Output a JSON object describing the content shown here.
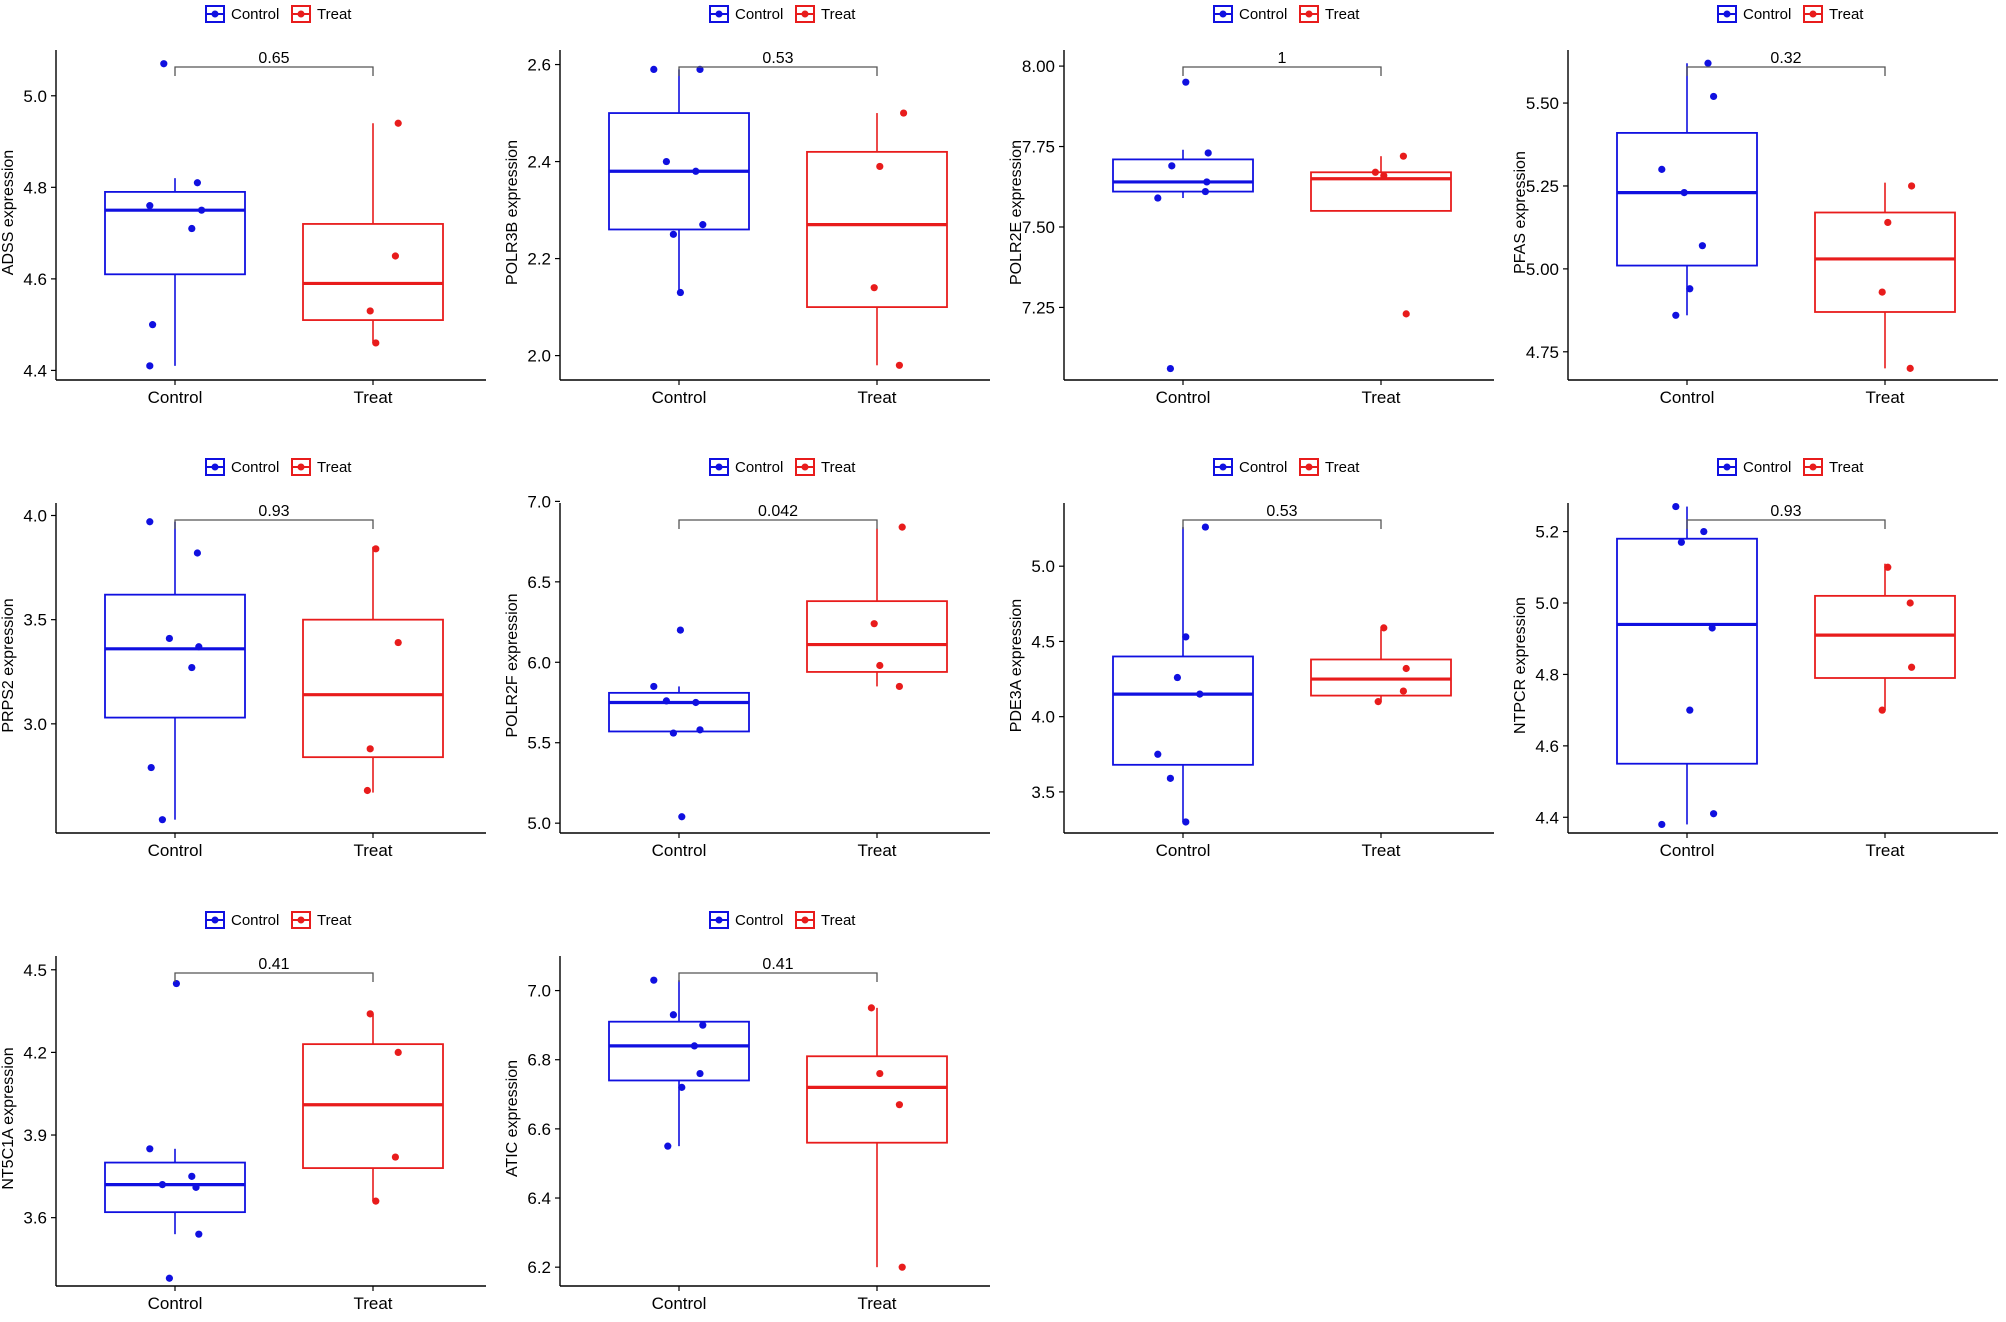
{
  "legend": {
    "control_label": "Control",
    "treat_label": "Treat"
  },
  "colors": {
    "control": "#1010E0",
    "treat": "#E81C1C",
    "axis": "#000000",
    "bracket": "#555555"
  },
  "chart_data": [
    {
      "type": "boxplot",
      "gene": "ADSS",
      "ylabel": "ADSS expression",
      "pvalue": "0.65",
      "categories": [
        "Control",
        "Treat"
      ],
      "ylim": [
        4.39,
        5.1
      ],
      "yticks": [
        4.4,
        4.6,
        4.8,
        5.0
      ],
      "series": [
        {
          "name": "Control",
          "box": {
            "min": 4.41,
            "q1": 4.61,
            "median": 4.75,
            "q3": 4.79,
            "max": 4.82
          },
          "points": [
            [
              -0.18,
              4.76
            ],
            [
              0.16,
              4.81
            ],
            [
              -0.18,
              4.41
            ],
            [
              0.12,
              4.71
            ],
            [
              0.19,
              4.75
            ],
            [
              -0.16,
              4.5
            ],
            [
              -0.08,
              5.07
            ]
          ]
        },
        {
          "name": "Treat",
          "box": {
            "min": 4.46,
            "q1": 4.51,
            "median": 4.59,
            "q3": 4.72,
            "max": 4.94
          },
          "points": [
            [
              0.18,
              4.94
            ],
            [
              0.16,
              4.65
            ],
            [
              -0.02,
              4.53
            ],
            [
              0.02,
              4.46
            ]
          ]
        }
      ]
    },
    {
      "type": "boxplot",
      "gene": "POLR3B",
      "ylabel": "POLR3B expression",
      "pvalue": "0.53",
      "categories": [
        "Control",
        "Treat"
      ],
      "ylim": [
        1.96,
        2.63
      ],
      "yticks": [
        2.0,
        2.2,
        2.4,
        2.6
      ],
      "series": [
        {
          "name": "Control",
          "box": {
            "min": 2.13,
            "q1": 2.26,
            "median": 2.38,
            "q3": 2.5,
            "max": 2.59
          },
          "points": [
            [
              -0.18,
              2.59
            ],
            [
              0.15,
              2.59
            ],
            [
              -0.09,
              2.4
            ],
            [
              0.12,
              2.38
            ],
            [
              -0.04,
              2.25
            ],
            [
              0.17,
              2.27
            ],
            [
              0.01,
              2.13
            ]
          ]
        },
        {
          "name": "Treat",
          "box": {
            "min": 1.98,
            "q1": 2.1,
            "median": 2.27,
            "q3": 2.42,
            "max": 2.5
          },
          "points": [
            [
              0.19,
              2.5
            ],
            [
              0.02,
              2.39
            ],
            [
              -0.02,
              2.14
            ],
            [
              0.16,
              1.98
            ]
          ]
        }
      ]
    },
    {
      "type": "boxplot",
      "gene": "POLR2E",
      "ylabel": "POLR2E expression",
      "pvalue": "1",
      "categories": [
        "Control",
        "Treat"
      ],
      "ylim": [
        7.04,
        8.05
      ],
      "yticks": [
        7.25,
        7.5,
        7.75,
        8.0
      ],
      "series": [
        {
          "name": "Control",
          "box": {
            "min": 7.59,
            "q1": 7.61,
            "median": 7.64,
            "q3": 7.71,
            "max": 7.74
          },
          "points": [
            [
              0.02,
              7.95
            ],
            [
              0.18,
              7.73
            ],
            [
              -0.08,
              7.69
            ],
            [
              0.17,
              7.64
            ],
            [
              0.16,
              7.61
            ],
            [
              -0.18,
              7.59
            ],
            [
              -0.09,
              7.06
            ]
          ]
        },
        {
          "name": "Treat",
          "box": {
            "min": 7.55,
            "q1": 7.55,
            "median": 7.65,
            "q3": 7.67,
            "max": 7.72
          },
          "points": [
            [
              0.16,
              7.72
            ],
            [
              0.02,
              7.66
            ],
            [
              -0.04,
              7.67
            ],
            [
              0.18,
              7.23
            ]
          ]
        }
      ]
    },
    {
      "type": "boxplot",
      "gene": "PFAS",
      "ylabel": "PFAS expression",
      "pvalue": "0.32",
      "categories": [
        "Control",
        "Treat"
      ],
      "ylim": [
        4.68,
        5.66
      ],
      "yticks": [
        4.75,
        5.0,
        5.25,
        5.5
      ],
      "series": [
        {
          "name": "Control",
          "box": {
            "min": 4.86,
            "q1": 5.01,
            "median": 5.23,
            "q3": 5.41,
            "max": 5.62
          },
          "points": [
            [
              0.15,
              5.62
            ],
            [
              0.19,
              5.52
            ],
            [
              -0.18,
              5.3
            ],
            [
              -0.02,
              5.23
            ],
            [
              0.11,
              5.07
            ],
            [
              0.02,
              4.94
            ],
            [
              -0.08,
              4.86
            ]
          ]
        },
        {
          "name": "Treat",
          "box": {
            "min": 4.7,
            "q1": 4.87,
            "median": 5.03,
            "q3": 5.17,
            "max": 5.26
          },
          "points": [
            [
              0.19,
              5.25
            ],
            [
              0.02,
              5.14
            ],
            [
              -0.02,
              4.93
            ],
            [
              0.18,
              4.7
            ]
          ]
        }
      ]
    },
    {
      "type": "boxplot",
      "gene": "PRPS2",
      "ylabel": "PRPS2 expression",
      "pvalue": "0.93",
      "categories": [
        "Control",
        "Treat"
      ],
      "ylim": [
        2.5,
        4.06
      ],
      "yticks": [
        3.0,
        3.5,
        4.0
      ],
      "series": [
        {
          "name": "Control",
          "box": {
            "min": 2.54,
            "q1": 3.03,
            "median": 3.36,
            "q3": 3.62,
            "max": 3.97
          },
          "points": [
            [
              -0.18,
              3.97
            ],
            [
              0.16,
              3.82
            ],
            [
              -0.04,
              3.41
            ],
            [
              0.17,
              3.37
            ],
            [
              0.12,
              3.27
            ],
            [
              -0.17,
              2.79
            ],
            [
              -0.09,
              2.54
            ]
          ]
        },
        {
          "name": "Treat",
          "box": {
            "min": 2.67,
            "q1": 2.84,
            "median": 3.14,
            "q3": 3.5,
            "max": 3.85
          },
          "points": [
            [
              0.02,
              3.84
            ],
            [
              0.18,
              3.39
            ],
            [
              -0.02,
              2.88
            ],
            [
              -0.04,
              2.68
            ]
          ]
        }
      ]
    },
    {
      "type": "boxplot",
      "gene": "POLR2F",
      "ylabel": "POLR2F expression",
      "pvalue": "0.042",
      "categories": [
        "Control",
        "Treat"
      ],
      "ylim": [
        4.97,
        6.99
      ],
      "yticks": [
        5.0,
        5.5,
        6.0,
        6.5,
        7.0
      ],
      "series": [
        {
          "name": "Control",
          "box": {
            "min": 5.57,
            "q1": 5.57,
            "median": 5.75,
            "q3": 5.81,
            "max": 5.85
          },
          "points": [
            [
              0.01,
              6.2
            ],
            [
              -0.18,
              5.85
            ],
            [
              -0.09,
              5.76
            ],
            [
              0.12,
              5.75
            ],
            [
              0.15,
              5.58
            ],
            [
              -0.04,
              5.56
            ],
            [
              0.02,
              5.04
            ]
          ]
        },
        {
          "name": "Treat",
          "box": {
            "min": 5.85,
            "q1": 5.94,
            "median": 6.11,
            "q3": 6.38,
            "max": 6.83
          },
          "points": [
            [
              0.18,
              6.84
            ],
            [
              -0.02,
              6.24
            ],
            [
              0.02,
              5.98
            ],
            [
              0.16,
              5.85
            ]
          ]
        }
      ]
    },
    {
      "type": "boxplot",
      "gene": "PDE3A",
      "ylabel": "PDE3A expression",
      "pvalue": "0.53",
      "categories": [
        "Control",
        "Treat"
      ],
      "ylim": [
        3.26,
        5.42
      ],
      "yticks": [
        3.5,
        4.0,
        4.5,
        5.0
      ],
      "series": [
        {
          "name": "Control",
          "box": {
            "min": 3.3,
            "q1": 3.68,
            "median": 4.15,
            "q3": 4.4,
            "max": 5.26
          },
          "points": [
            [
              0.16,
              5.26
            ],
            [
              0.02,
              4.53
            ],
            [
              -0.04,
              4.26
            ],
            [
              0.12,
              4.15
            ],
            [
              -0.18,
              3.75
            ],
            [
              -0.09,
              3.59
            ],
            [
              0.02,
              3.3
            ]
          ]
        },
        {
          "name": "Treat",
          "box": {
            "min": 4.1,
            "q1": 4.14,
            "median": 4.25,
            "q3": 4.38,
            "max": 4.58
          },
          "points": [
            [
              0.02,
              4.59
            ],
            [
              0.18,
              4.32
            ],
            [
              0.16,
              4.17
            ],
            [
              -0.02,
              4.1
            ]
          ]
        }
      ]
    },
    {
      "type": "boxplot",
      "gene": "NTPCR",
      "ylabel": "NTPCR expression",
      "pvalue": "0.93",
      "categories": [
        "Control",
        "Treat"
      ],
      "ylim": [
        4.37,
        5.28
      ],
      "yticks": [
        4.4,
        4.6,
        4.8,
        5.0,
        5.2
      ],
      "series": [
        {
          "name": "Control",
          "box": {
            "min": 4.38,
            "q1": 4.55,
            "median": 4.94,
            "q3": 5.18,
            "max": 5.27
          },
          "points": [
            [
              -0.08,
              5.27
            ],
            [
              0.12,
              5.2
            ],
            [
              -0.04,
              5.17
            ],
            [
              0.18,
              4.93
            ],
            [
              0.02,
              4.7
            ],
            [
              0.19,
              4.41
            ],
            [
              -0.18,
              4.38
            ]
          ]
        },
        {
          "name": "Treat",
          "box": {
            "min": 4.7,
            "q1": 4.79,
            "median": 4.91,
            "q3": 5.02,
            "max": 5.11
          },
          "points": [
            [
              0.02,
              5.1
            ],
            [
              0.18,
              5.0
            ],
            [
              0.19,
              4.82
            ],
            [
              -0.02,
              4.7
            ]
          ]
        }
      ]
    },
    {
      "type": "boxplot",
      "gene": "NT5C1A",
      "ylabel": "NT5C1A expression",
      "pvalue": "0.41",
      "categories": [
        "Control",
        "Treat"
      ],
      "ylim": [
        3.37,
        4.55
      ],
      "yticks": [
        3.6,
        3.9,
        4.2,
        4.5
      ],
      "series": [
        {
          "name": "Control",
          "box": {
            "min": 3.54,
            "q1": 3.62,
            "median": 3.72,
            "q3": 3.8,
            "max": 3.85
          },
          "points": [
            [
              0.01,
              4.45
            ],
            [
              -0.18,
              3.85
            ],
            [
              0.12,
              3.75
            ],
            [
              -0.09,
              3.72
            ],
            [
              0.15,
              3.71
            ],
            [
              0.17,
              3.54
            ],
            [
              -0.04,
              3.38
            ]
          ]
        },
        {
          "name": "Treat",
          "box": {
            "min": 3.66,
            "q1": 3.78,
            "median": 4.01,
            "q3": 4.23,
            "max": 4.34
          },
          "points": [
            [
              -0.02,
              4.34
            ],
            [
              0.18,
              4.2
            ],
            [
              0.16,
              3.82
            ],
            [
              0.02,
              3.66
            ]
          ]
        }
      ]
    },
    {
      "type": "boxplot",
      "gene": "ATIC",
      "ylabel": "ATIC expression",
      "pvalue": "0.41",
      "categories": [
        "Control",
        "Treat"
      ],
      "ylim": [
        6.16,
        7.1
      ],
      "yticks": [
        6.2,
        6.4,
        6.6,
        6.8,
        7.0
      ],
      "series": [
        {
          "name": "Control",
          "box": {
            "min": 6.55,
            "q1": 6.74,
            "median": 6.84,
            "q3": 6.91,
            "max": 7.03
          },
          "points": [
            [
              -0.18,
              7.03
            ],
            [
              -0.04,
              6.93
            ],
            [
              0.17,
              6.9
            ],
            [
              0.11,
              6.84
            ],
            [
              0.15,
              6.76
            ],
            [
              0.02,
              6.72
            ],
            [
              -0.08,
              6.55
            ]
          ]
        },
        {
          "name": "Treat",
          "box": {
            "min": 6.2,
            "q1": 6.56,
            "median": 6.72,
            "q3": 6.81,
            "max": 6.95
          },
          "points": [
            [
              -0.04,
              6.95
            ],
            [
              0.02,
              6.76
            ],
            [
              0.16,
              6.67
            ],
            [
              0.18,
              6.2
            ]
          ]
        }
      ]
    }
  ]
}
